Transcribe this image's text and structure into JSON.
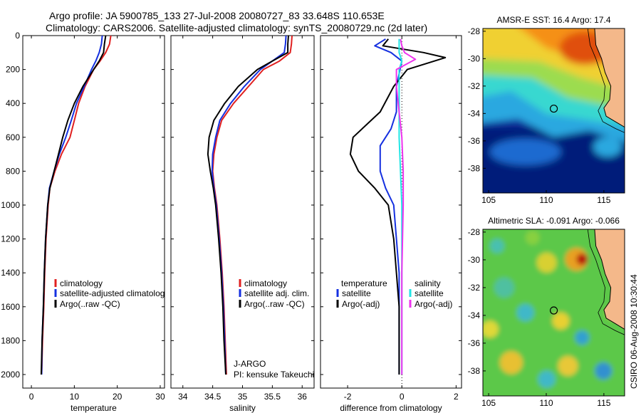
{
  "title_line1": "Argo profile: JA 5900785_133 27-Jul-2008 20080727_83 33.648S 110.653E",
  "title_line2": "Climatology: CARS2006. Satellite-adjusted climatology: synTS_20080729.nc (2d later)",
  "side_caption": "CSIRO 06-Aug-2008 10:30:44",
  "colors": {
    "climatology": "#e02020",
    "satellite": "#1530e0",
    "argo": "#000000",
    "cyan": "#22e5e5",
    "magenta": "#ee33ee"
  },
  "chart_data": [
    {
      "id": "temperature",
      "type": "line",
      "xlabel": "temperature",
      "ylabel": "",
      "xlim": [
        -2,
        31
      ],
      "ylim": [
        2080,
        0
      ],
      "y_reversed": true,
      "xticks": [
        0,
        10,
        20,
        30
      ],
      "yticks": [
        0,
        200,
        400,
        600,
        800,
        1000,
        1200,
        1400,
        1600,
        1800,
        2000
      ],
      "legend": {
        "placement": "bottom-right",
        "items": [
          "climatology",
          "satellite-adjusted climatolog",
          "Argo(..raw -QC)"
        ]
      },
      "annotations": [],
      "series": [
        {
          "name": "climatology",
          "color": "#e02020",
          "x": [
            18.5,
            18.2,
            17.3,
            16.0,
            14.5,
            12.5,
            11.0,
            10.0,
            9.0,
            7.0,
            5.5,
            4.3,
            3.9,
            3.4,
            3.1,
            2.9,
            2.6,
            2.4
          ],
          "y": [
            0,
            50,
            100,
            150,
            200,
            300,
            400,
            500,
            600,
            700,
            800,
            900,
            1000,
            1200,
            1400,
            1600,
            1800,
            2000
          ]
        },
        {
          "name": "satellite-adjusted climatolog",
          "color": "#1530e0",
          "x": [
            16.5,
            16.3,
            15.8,
            15.0,
            14.0,
            12.3,
            10.5,
            9.3,
            8.0,
            6.5,
            5.3,
            4.2,
            3.8,
            3.3,
            3.0,
            2.8,
            2.5,
            2.4
          ],
          "y": [
            0,
            50,
            100,
            150,
            200,
            300,
            400,
            500,
            600,
            700,
            800,
            900,
            1000,
            1200,
            1400,
            1600,
            1800,
            2000
          ]
        },
        {
          "name": "Argo(..raw -QC)",
          "color": "#000000",
          "x": [
            17.3,
            17.0,
            16.8,
            15.8,
            14.5,
            12.0,
            10.0,
            8.5,
            7.3,
            6.3,
            5.3,
            4.3,
            3.8,
            3.3,
            3.0,
            2.8,
            2.5,
            2.3
          ],
          "y": [
            0,
            50,
            100,
            150,
            200,
            300,
            400,
            500,
            600,
            700,
            800,
            900,
            1000,
            1200,
            1400,
            1600,
            1800,
            2000
          ]
        }
      ]
    },
    {
      "id": "salinity",
      "type": "line",
      "xlabel": "salinity",
      "ylabel": "",
      "xlim": [
        33.8,
        36.2
      ],
      "ylim": [
        2080,
        0
      ],
      "y_reversed": true,
      "xticks": [
        34,
        34.5,
        35,
        35.5,
        36
      ],
      "yticks": [
        0,
        200,
        400,
        600,
        800,
        1000,
        1200,
        1400,
        1600,
        1800,
        2000
      ],
      "legend": {
        "placement": "bottom-right",
        "items": [
          "climatology",
          "satellite adj. clim.",
          "Argo(..raw -QC)"
        ]
      },
      "annotations": [
        "J-ARGO",
        "PI: kensuke Takeuchi"
      ],
      "series": [
        {
          "name": "climatology",
          "color": "#e02020",
          "x": [
            35.83,
            35.82,
            35.8,
            35.62,
            35.35,
            35.1,
            34.85,
            34.65,
            34.57,
            34.52,
            34.5,
            34.53,
            34.57,
            34.62,
            34.66,
            34.69,
            34.71,
            34.73
          ],
          "y": [
            0,
            50,
            100,
            150,
            200,
            300,
            400,
            500,
            600,
            700,
            800,
            900,
            1000,
            1200,
            1400,
            1600,
            1800,
            2000
          ]
        },
        {
          "name": "satellite adj. clim.",
          "color": "#1530e0",
          "x": [
            35.73,
            35.72,
            35.7,
            35.5,
            35.3,
            35.03,
            34.8,
            34.62,
            34.55,
            34.5,
            34.49,
            34.52,
            34.56,
            34.61,
            34.65,
            34.68,
            34.7,
            34.72
          ],
          "y": [
            0,
            50,
            100,
            150,
            200,
            300,
            400,
            500,
            600,
            700,
            800,
            900,
            1000,
            1200,
            1400,
            1600,
            1800,
            2000
          ]
        },
        {
          "name": "Argo(..raw -QC)",
          "color": "#000000",
          "x": [
            35.77,
            35.76,
            35.76,
            35.5,
            35.25,
            34.93,
            34.7,
            34.52,
            34.44,
            34.42,
            34.46,
            34.51,
            34.55,
            34.6,
            34.64,
            34.67,
            34.69,
            34.72
          ],
          "y": [
            0,
            50,
            100,
            150,
            200,
            300,
            400,
            500,
            600,
            700,
            800,
            900,
            1000,
            1200,
            1400,
            1600,
            1800,
            2000
          ]
        }
      ]
    },
    {
      "id": "difference",
      "type": "line",
      "xlabel": "difference from climatology",
      "ylabel": "",
      "xlim": [
        -3,
        2.2
      ],
      "ylim": [
        2080,
        0
      ],
      "y_reversed": true,
      "xticks": [
        -2,
        0,
        2
      ],
      "zero_line": true,
      "yticks": [
        0,
        200,
        400,
        600,
        800,
        1000,
        1200,
        1400,
        1600,
        1800,
        2000
      ],
      "legend": {
        "placement": "bottom",
        "headers": [
          "temperature",
          "salinity"
        ],
        "items": [
          "satellite",
          "Argo(-adj)",
          "satellite",
          "Argo(-adj)"
        ]
      },
      "annotations": [],
      "series": [
        {
          "name": "satellite",
          "group": "temperature",
          "color": "#1530e0",
          "x": [
            -0.6,
            -1.0,
            -0.4,
            0.0,
            -0.2,
            -0.2,
            -0.4,
            -0.8,
            -0.8,
            -0.6,
            -0.3,
            -0.2,
            -0.1,
            -0.1,
            -0.1,
            -0.1
          ],
          "y": [
            20,
            60,
            100,
            150,
            300,
            450,
            550,
            650,
            800,
            900,
            1000,
            1200,
            1400,
            1600,
            1800,
            2000
          ]
        },
        {
          "name": "Argo(-adj)",
          "group": "temperature",
          "color": "#000000",
          "x": [
            -0.5,
            -0.7,
            0.8,
            1.6,
            0.2,
            -0.3,
            -0.8,
            -1.8,
            -1.9,
            -1.6,
            -1.0,
            -0.5,
            -0.3,
            -0.2,
            -0.1,
            -0.1
          ],
          "y": [
            20,
            60,
            100,
            130,
            200,
            300,
            450,
            600,
            700,
            800,
            900,
            1000,
            1200,
            1400,
            1600,
            2000
          ]
        },
        {
          "name": "satellite",
          "group": "salinity",
          "color": "#22e5e5",
          "x": [
            -0.1,
            -0.1,
            -0.1,
            0.0,
            -0.1,
            -0.1,
            -0.1,
            -0.1,
            -0.05,
            0.0,
            0.0,
            0.0,
            0.0
          ],
          "y": [
            20,
            60,
            100,
            150,
            200,
            300,
            450,
            600,
            800,
            1000,
            1400,
            1800,
            2000
          ]
        },
        {
          "name": "Argo(-adj)",
          "group": "salinity",
          "color": "#ee33ee",
          "x": [
            -0.05,
            0.0,
            0.1,
            0.5,
            -0.2,
            -0.2,
            -0.1,
            0.0,
            0.05,
            0.05,
            0.0,
            0.0,
            0.0
          ],
          "y": [
            20,
            60,
            100,
            140,
            200,
            300,
            450,
            600,
            800,
            1000,
            1400,
            1800,
            2000
          ]
        }
      ]
    },
    {
      "id": "sst_map",
      "type": "heatmap",
      "title": "AMSR-E SST: 16.4 Argo: 17.4",
      "xlim": [
        104.5,
        116.8
      ],
      "ylim": [
        -39.8,
        -27.8
      ],
      "xticks": [
        105,
        110,
        115
      ],
      "yticks": [
        -28,
        -30,
        -32,
        -34,
        -36,
        -38
      ],
      "marker": {
        "lon": 110.653,
        "lat": -33.648
      }
    },
    {
      "id": "sla_map",
      "type": "heatmap",
      "title": "Altimetric SLA: -0.091 Argo: -0.066",
      "xlim": [
        104.5,
        116.8
      ],
      "ylim": [
        -39.8,
        -27.8
      ],
      "xticks": [
        105,
        110,
        115
      ],
      "yticks": [
        -28,
        -30,
        -32,
        -34,
        -36,
        -38
      ],
      "marker": {
        "lon": 110.653,
        "lat": -33.648
      }
    }
  ]
}
